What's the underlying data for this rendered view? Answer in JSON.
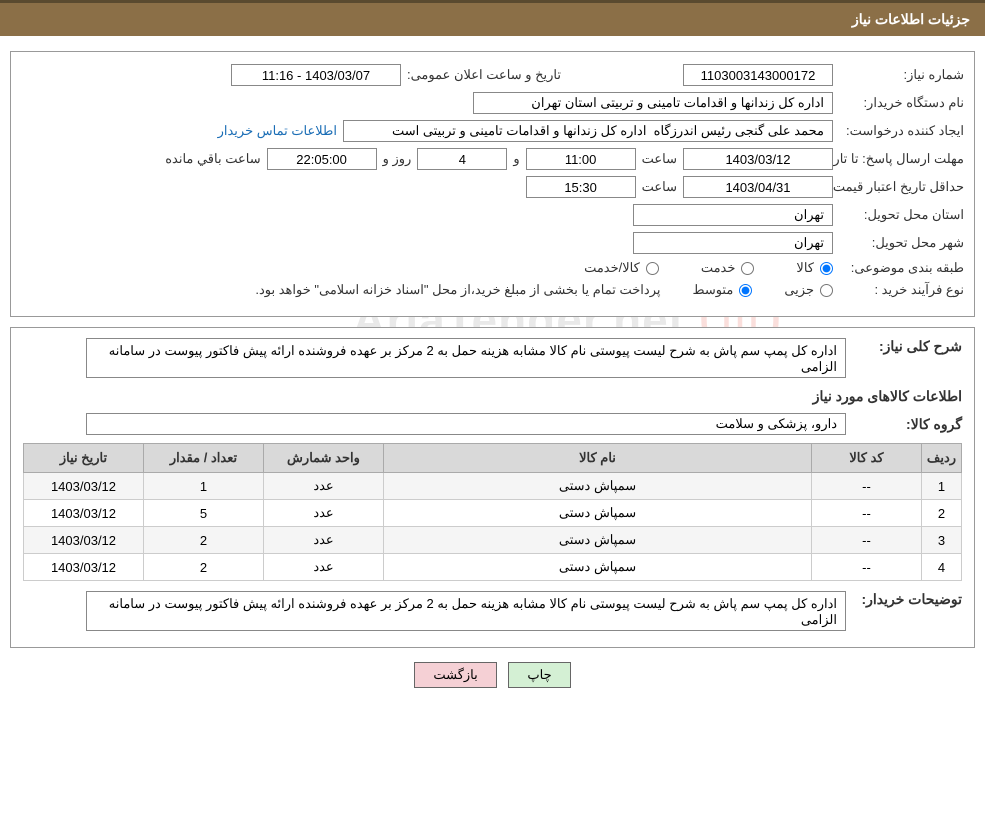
{
  "header": {
    "title": "جزئیات اطلاعات نیاز"
  },
  "form": {
    "need_number_label": "شماره نیاز:",
    "need_number": "1103003143000172",
    "announce_label": "تاریخ و ساعت اعلان عمومی:",
    "announce_value": "1403/03/07 - 11:16",
    "buyer_org_label": "نام دستگاه خریدار:",
    "buyer_org": "اداره کل زندانها و اقدامات تامینی و تربیتی استان تهران",
    "requester_label": "ایجاد کننده درخواست:",
    "requester": "محمد علی گنجی رئیس اندرزگاه  اداره کل زندانها و اقدامات تامینی و تربیتی است",
    "buyer_contact_link": "اطلاعات تماس خریدار",
    "deadline_label": "مهلت ارسال پاسخ: تا تاریخ:",
    "deadline_date": "1403/03/12",
    "hour_label": "ساعت",
    "deadline_hour": "11:00",
    "and_label": "و",
    "days_remaining": "4",
    "days_label": "روز و",
    "time_remaining": "22:05:00",
    "remaining_label": "ساعت باقي مانده",
    "min_validity_label": "حداقل تاریخ اعتبار قیمت: تا تاریخ:",
    "min_validity_date": "1403/04/31",
    "min_validity_hour": "15:30",
    "delivery_province_label": "استان محل تحویل:",
    "delivery_province": "تهران",
    "delivery_city_label": "شهر محل تحویل:",
    "delivery_city": "تهران",
    "category_label": "طبقه بندی موضوعی:",
    "cat_goods": "کالا",
    "cat_service": "خدمت",
    "cat_goods_service": "کالا/خدمت",
    "purchase_type_label": "نوع فرآیند خرید :",
    "pt_minor": "جزیی",
    "pt_medium": "متوسط",
    "purchase_note": "پرداخت تمام یا بخشی از مبلغ خرید،از محل \"اسناد خزانه اسلامی\" خواهد بود."
  },
  "details": {
    "general_label": "شرح کلی نیاز:",
    "general_text": "اداره کل پمپ سم پاش به شرح لیست پیوستی نام کالا مشابه هزینه حمل به 2 مرکز بر عهده فروشنده ارائه پیش فاکتور پیوست در سامانه الزامی",
    "goods_info_title": "اطلاعات کالاهای مورد نیاز",
    "goods_group_label": "گروه کالا:",
    "goods_group": "دارو، پزشکی و سلامت",
    "buyer_notes_label": "توضیحات خریدار:",
    "buyer_notes": "اداره کل پمپ سم پاش به شرح لیست پیوستی نام کالا مشابه هزینه حمل به 2 مرکز بر عهده فروشنده ارائه پیش فاکتور پیوست در سامانه الزامی"
  },
  "table": {
    "columns": [
      "ردیف",
      "کد کالا",
      "نام کالا",
      "واحد شمارش",
      "تعداد / مقدار",
      "تاریخ نیاز"
    ],
    "rows": [
      [
        "1",
        "--",
        "سمپاش دستی",
        "عدد",
        "1",
        "1403/03/12"
      ],
      [
        "2",
        "--",
        "سمپاش دستی",
        "عدد",
        "5",
        "1403/03/12"
      ],
      [
        "3",
        "--",
        "سمپاش دستی",
        "عدد",
        "2",
        "1403/03/12"
      ],
      [
        "4",
        "--",
        "سمپاش دستی",
        "عدد",
        "2",
        "1403/03/12"
      ]
    ],
    "col_widths": [
      "40px",
      "110px",
      "auto",
      "120px",
      "120px",
      "120px"
    ]
  },
  "buttons": {
    "print": "چاپ",
    "back": "بازگشت"
  },
  "watermark": {
    "text": "AriaTender.net"
  },
  "colors": {
    "header_bg": "#8b6f47",
    "header_border": "#5a4a2f",
    "link": "#1a6db5",
    "th_bg": "#d9d9d9",
    "btn_print_bg": "#d4f0d4",
    "btn_back_bg": "#f5d0d5"
  }
}
